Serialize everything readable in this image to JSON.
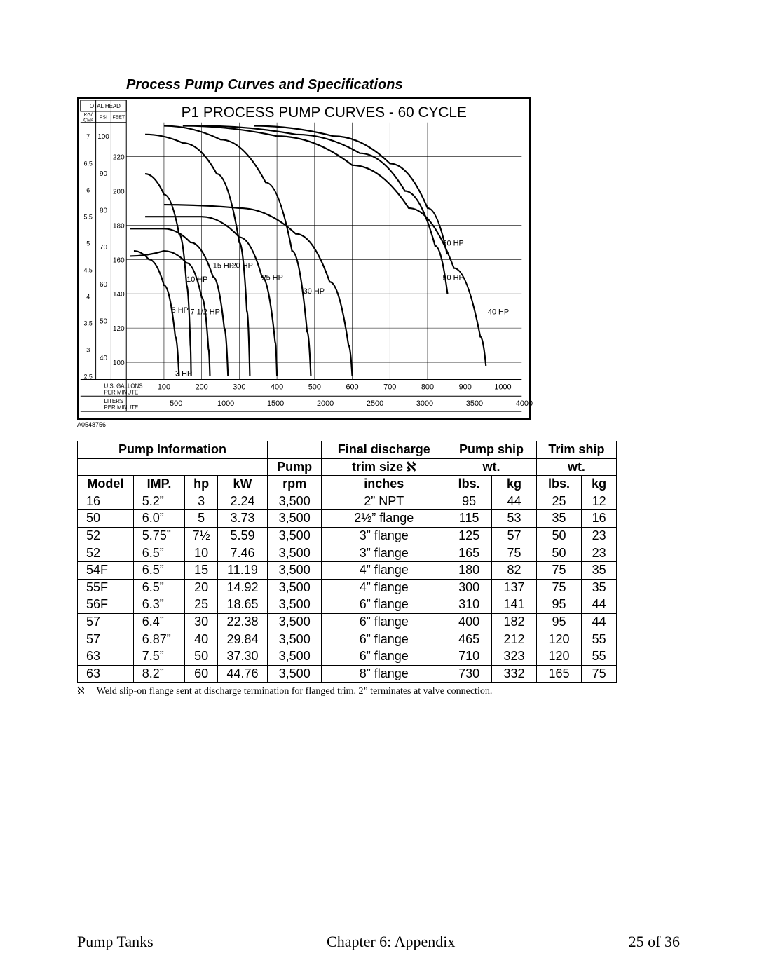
{
  "section_title": "Process Pump Curves and Specifications",
  "figure_id": "A0548756",
  "chart": {
    "type": "line",
    "title": "P1 PROCESS PUMP CURVES - 60 CYCLE",
    "background_color": "#ffffff",
    "border_color": "#000000",
    "grid_color": "#000000",
    "curve_color": "#000000",
    "curve_width": 2.2,
    "font": {
      "family": "Arial",
      "size_axis": 10,
      "size_title": 21,
      "size_curve_label": 11
    },
    "header_label": "TOTAL HEAD",
    "y_units": [
      {
        "label": "KG/",
        "sub": "CM",
        "sup": "2"
      },
      {
        "label": "PSI"
      },
      {
        "label": "FEET"
      }
    ],
    "x_top_label": "U.S. GALLONS\nPER MINUTE",
    "x_bottom_label": "LITERS\nPER MINUTE",
    "x_top_ticks": [
      100,
      200,
      300,
      400,
      500,
      600,
      700,
      800,
      900,
      1000
    ],
    "x_bottom_ticks": [
      500,
      1000,
      1500,
      2000,
      2500,
      3000,
      3500,
      4000
    ],
    "x_range_gal": [
      0,
      1050
    ],
    "y_kgcm2_ticks": [
      2.5,
      3,
      3.5,
      4,
      4.5,
      5,
      5.5,
      6,
      6.5,
      7
    ],
    "y_psi_ticks": [
      40,
      50,
      60,
      70,
      80,
      90,
      100
    ],
    "y_feet_ticks": [
      100,
      120,
      140,
      160,
      180,
      200,
      220
    ],
    "y_range_feet": [
      90,
      240
    ],
    "curves": [
      {
        "label": "3 HP",
        "label_xy_gal_feet": [
          130,
          92
        ],
        "points_gal_feet": [
          [
            20,
            165
          ],
          [
            60,
            160
          ],
          [
            100,
            145
          ],
          [
            130,
            115
          ],
          [
            140,
            92
          ]
        ]
      },
      {
        "label": "5 HP",
        "label_xy_gal_feet": [
          120,
          129
        ],
        "points_gal_feet": [
          [
            50,
            210
          ],
          [
            100,
            198
          ],
          [
            140,
            175
          ],
          [
            160,
            145
          ],
          [
            170,
            110
          ],
          [
            172,
            92
          ]
        ]
      },
      {
        "label": "7 1/2 HP",
        "label_xy_gal_feet": [
          170,
          128
        ],
        "points_gal_feet": [
          [
            10,
            162
          ],
          [
            100,
            165
          ],
          [
            160,
            158
          ],
          [
            200,
            138
          ],
          [
            218,
            108
          ],
          [
            222,
            92
          ]
        ]
      },
      {
        "label": "10 HP",
        "label_xy_gal_feet": [
          160,
          147
        ],
        "points_gal_feet": [
          [
            10,
            178
          ],
          [
            100,
            178
          ],
          [
            170,
            170
          ],
          [
            230,
            150
          ],
          [
            260,
            120
          ],
          [
            270,
            92
          ]
        ]
      },
      {
        "label": "15 HP",
        "label_xy_gal_feet": [
          230,
          155
        ],
        "points_gal_feet": [
          [
            50,
            233
          ],
          [
            150,
            228
          ],
          [
            240,
            210
          ],
          [
            300,
            170
          ],
          [
            320,
            130
          ],
          [
            328,
            92
          ]
        ]
      },
      {
        "label": "20 HP",
        "label_xy_gal_feet": [
          280,
          155
        ],
        "points_gal_feet": [
          [
            50,
            185
          ],
          [
            200,
            185
          ],
          [
            300,
            173
          ],
          [
            360,
            150
          ],
          [
            395,
            112
          ],
          [
            400,
            92
          ]
        ]
      },
      {
        "label": "25 HP",
        "label_xy_gal_feet": [
          360,
          148
        ],
        "points_gal_feet": [
          [
            100,
            238
          ],
          [
            250,
            230
          ],
          [
            370,
            205
          ],
          [
            440,
            165
          ],
          [
            480,
            118
          ],
          [
            490,
            92
          ]
        ]
      },
      {
        "label": "30 HP",
        "label_xy_gal_feet": [
          470,
          140
        ],
        "points_gal_feet": [
          [
            100,
            192
          ],
          [
            300,
            190
          ],
          [
            450,
            175
          ],
          [
            540,
            147
          ],
          [
            590,
            110
          ],
          [
            600,
            92
          ]
        ]
      },
      {
        "label": "40 HP",
        "label_xy_gal_feet": [
          960,
          128
        ],
        "points_gal_feet": [
          [
            150,
            238
          ],
          [
            400,
            232
          ],
          [
            600,
            215
          ],
          [
            750,
            190
          ],
          [
            870,
            155
          ],
          [
            940,
            115
          ],
          [
            955,
            98
          ]
        ]
      },
      {
        "label": "50 HP",
        "label_xy_gal_feet": [
          840,
          148
        ],
        "points_gal_feet": [
          [
            200,
            238
          ],
          [
            450,
            233
          ],
          [
            620,
            222
          ],
          [
            740,
            200
          ],
          [
            820,
            168
          ],
          [
            853,
            140
          ]
        ]
      },
      {
        "label": "60 HP",
        "label_xy_gal_feet": [
          840,
          168
        ],
        "points_gal_feet": [
          [
            340,
            238
          ],
          [
            550,
            232
          ],
          [
            700,
            216
          ],
          [
            800,
            190
          ],
          [
            852,
            163
          ]
        ]
      }
    ]
  },
  "table": {
    "header_groups": [
      {
        "label": "Pump Information",
        "span": 4
      },
      {
        "label": "Pump",
        "subLabel": "rpm",
        "span": 1
      },
      {
        "label": "Final discharge",
        "subLabel_html": "trim size ℵ",
        "span": 1
      },
      {
        "label": "Pump ship",
        "subLabel": "wt.",
        "span": 2
      },
      {
        "label": "Trim ship",
        "subLabel": "wt.",
        "span": 2
      }
    ],
    "columns": [
      "Model",
      "IMP.",
      "hp",
      "kW",
      "rpm",
      "inches",
      "lbs.",
      "kg",
      "lbs.",
      "kg"
    ],
    "rows": [
      [
        "16",
        "5.2”",
        "3",
        "2.24",
        "3,500",
        "2” NPT",
        "95",
        "44",
        "25",
        "12"
      ],
      [
        "50",
        "6.0”",
        "5",
        "3.73",
        "3,500",
        "2½” flange",
        "115",
        "53",
        "35",
        "16"
      ],
      [
        "52",
        "5.75”",
        "7½",
        "5.59",
        "3,500",
        "3” flange",
        "125",
        "57",
        "50",
        "23"
      ],
      [
        "52",
        "6.5”",
        "10",
        "7.46",
        "3,500",
        "3” flange",
        "165",
        "75",
        "50",
        "23"
      ],
      [
        "54F",
        "6.5”",
        "15",
        "11.19",
        "3,500",
        "4” flange",
        "180",
        "82",
        "75",
        "35"
      ],
      [
        "55F",
        "6.5”",
        "20",
        "14.92",
        "3,500",
        "4” flange",
        "300",
        "137",
        "75",
        "35"
      ],
      [
        "56F",
        "6.3”",
        "25",
        "18.65",
        "3,500",
        "6” flange",
        "310",
        "141",
        "95",
        "44"
      ],
      [
        "57",
        "6.4”",
        "30",
        "22.38",
        "3,500",
        "6” flange",
        "400",
        "182",
        "95",
        "44"
      ],
      [
        "57",
        "6.87”",
        "40",
        "29.84",
        "3,500",
        "6” flange",
        "465",
        "212",
        "120",
        "55"
      ],
      [
        "63",
        "7.5”",
        "50",
        "37.30",
        "3,500",
        "6” flange",
        "710",
        "323",
        "120",
        "55"
      ],
      [
        "63",
        "8.2”",
        "60",
        "44.76",
        "3,500",
        "8” flange",
        "730",
        "332",
        "165",
        "75"
      ]
    ]
  },
  "footnote": {
    "marker": "ℵ",
    "text": "Weld slip-on flange sent at discharge termination for flanged trim.  2” terminates at valve connection."
  },
  "footer": {
    "left": "Pump Tanks",
    "center": "Chapter 6: Appendix",
    "right": "25 of 36"
  }
}
